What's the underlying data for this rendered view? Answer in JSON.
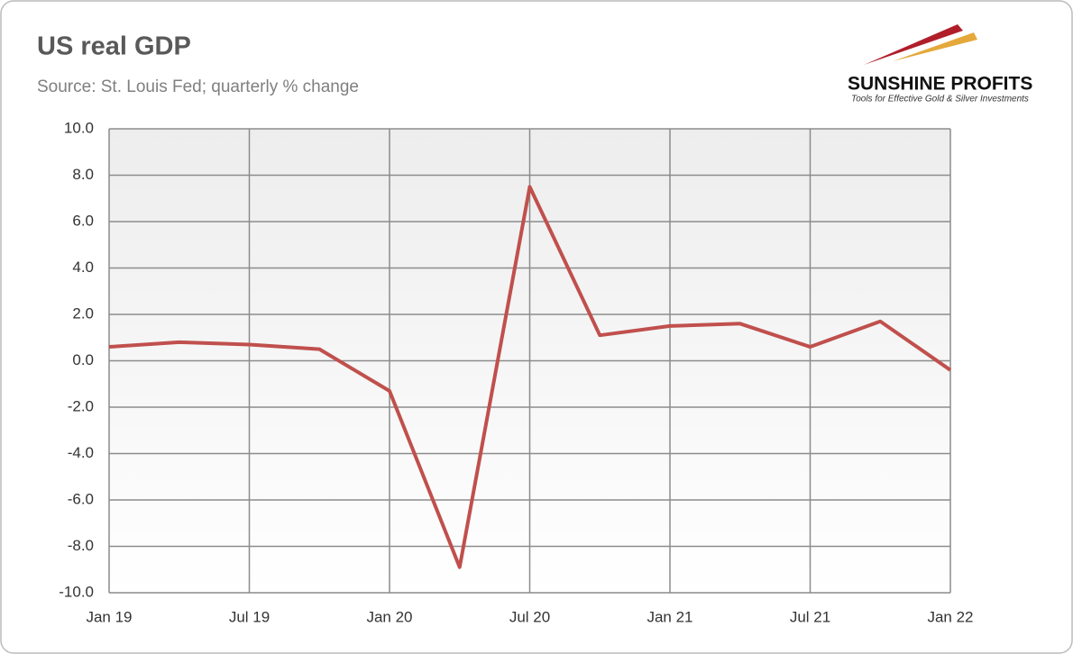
{
  "chart_data": {
    "type": "line",
    "title": "US real GDP",
    "subtitle": "Source: St. Louis Fed; quarterly % change",
    "categories": [
      "Jan 19",
      null,
      "Jul 19",
      null,
      "Jan 20",
      null,
      "Jul 20",
      null,
      "Jan 21",
      null,
      "Jul 21",
      null,
      "Jan 22"
    ],
    "series": [
      {
        "name": "US real GDP",
        "color": "#c0504d",
        "values": [
          0.6,
          0.8,
          0.7,
          0.5,
          -1.3,
          -8.9,
          7.5,
          1.1,
          1.5,
          1.6,
          0.6,
          1.7,
          -0.4
        ]
      }
    ],
    "ylim": [
      -10,
      10
    ],
    "yticks": [
      {
        "value": -10,
        "label": "-10.0"
      },
      {
        "value": -8,
        "label": "-8.0"
      },
      {
        "value": -6,
        "label": "-6.0"
      },
      {
        "value": -4,
        "label": "-4.0"
      },
      {
        "value": -2,
        "label": "-2.0"
      },
      {
        "value": 0,
        "label": "0.0"
      },
      {
        "value": 2,
        "label": "2.0"
      },
      {
        "value": 4,
        "label": "4.0"
      },
      {
        "value": 6,
        "label": "6.0"
      },
      {
        "value": 8,
        "label": "8.0"
      },
      {
        "value": 10,
        "label": "10.0"
      }
    ],
    "grid": true
  },
  "logo": {
    "name": "SUNSHINE PROFITS",
    "tagline": "Tools for Effective Gold & Silver Investments"
  }
}
